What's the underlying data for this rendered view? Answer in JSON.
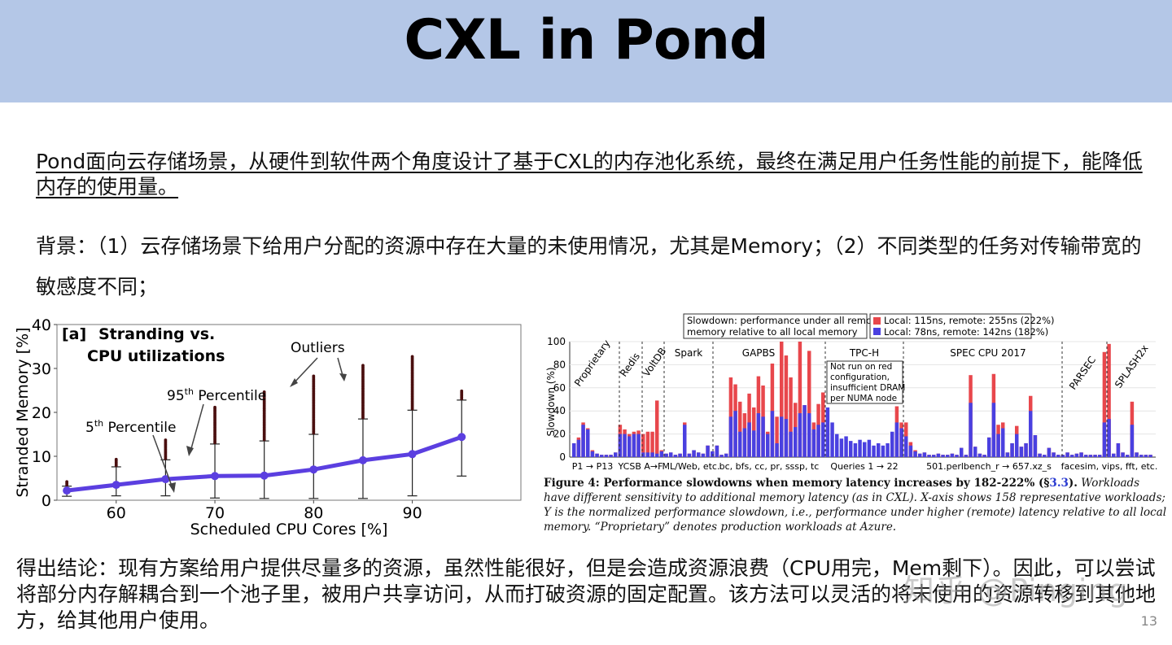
{
  "slide": {
    "title": "CXL in Pond",
    "summary": "Pond面向云存储场景，从硬件到软件两个角度设计了基于CXL的内存池化系统，最终在满足用户任务性能的前提下，能降低内存的使用量。",
    "background": "背景：（1）云存储场景下给用户分配的资源中存在大量的未使用情况，尤其是Memory；（2）不同类型的任务对传输带宽的敏感度不同；",
    "conclusion": "得出结论：现有方案给用户提供尽量多的资源，虽然性能很好，但是会造成资源浪费（CPU用完，Mem剩下）。因此，可以尝试将部分内存解耦合到一个池子里，被用户共享访问，从而打破资源的固定配置。该方法可以灵活的将未使用的资源转移到其他地方，给其他用户使用。",
    "page_number": "13",
    "watermark": "知乎 @Pinging"
  },
  "chart_left": {
    "panel_label": "[a]",
    "title_line1": "Stranding vs.",
    "title_line2": "CPU utilizations",
    "xlabel": "Scheduled CPU Cores [%]",
    "ylabel": "Stranded Memory [%]",
    "xticks": [
      "60",
      "70",
      "80",
      "90"
    ],
    "yticks": [
      "0",
      "10",
      "20",
      "30",
      "40"
    ],
    "annotations": {
      "outliers": "Outliers",
      "p95_prefix": "95",
      "p95_sup": "th",
      "p95_suffix": " Percentile",
      "p5_prefix": "5",
      "p5_sup": "th",
      "p5_suffix": " Percentile"
    },
    "line_color": "#5b3fe0",
    "outlier_color": "#4a0f0f"
  },
  "chart_right": {
    "legend_box_text1": "Slowdown: performance under all remote",
    "legend_box_text2": "memory relative to all local memory",
    "legend_local1": "Local: 115ns, remote: 255ns (222%)",
    "legend_local2": "Local:   78ns, remote: 142ns (182%)",
    "color_red": "#e8474c",
    "color_blue": "#4a40e0",
    "ylabel": "Slowdown (%)",
    "yticks": [
      "0",
      "20",
      "40",
      "60",
      "80",
      "100"
    ],
    "groups": [
      "Spark",
      "GAPBS",
      "TPC-H",
      "SPEC CPU 2017"
    ],
    "rotated_groups": [
      "Proprietary",
      "Redis",
      "VoltDB",
      "PARSEC",
      "SPLASH2x"
    ],
    "tpch_note": [
      "Not run on red",
      "configuration,",
      "insufficient DRAM",
      "per NUMA node"
    ],
    "xlabels": [
      "P1 → P13",
      "YCSB A→F",
      "ML/Web, etc.",
      "bc, bfs, cc, pr, sssp, tc",
      "Queries 1 → 22",
      "501.perlbench_r → 657.xz_s",
      "facesim, vips, fft, etc."
    ]
  },
  "caption": {
    "fig": "Figure 4:",
    "bold": "  Performance slowdowns when memory latency increases by 182-222% (§",
    "link": "3.3",
    "bold_end": ").",
    "italic": "  Workloads have different sensitivity to additional memory latency (as in CXL). X-axis shows 158 representative workloads; Y is the normalized performance slowdown, i.e., performance under higher (remote) latency relative to all local memory. “Proprietary” denotes production workloads at Azure."
  }
}
